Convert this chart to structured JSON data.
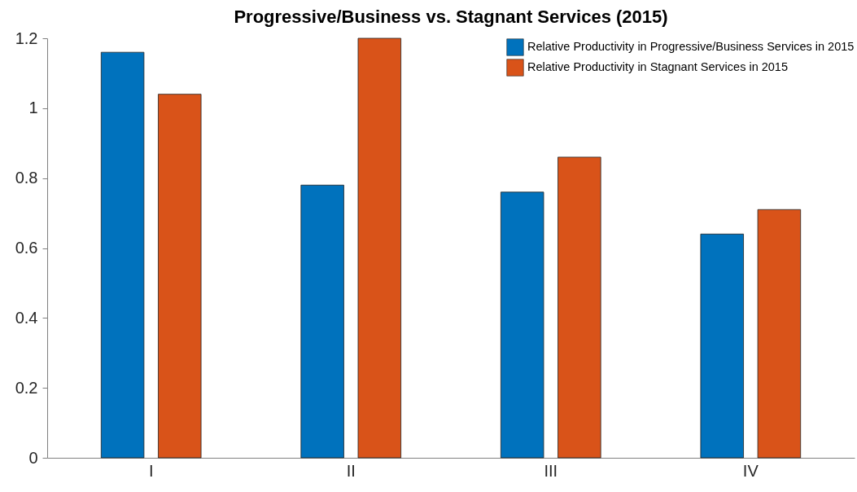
{
  "chart_data": {
    "type": "bar",
    "title": "Progressive/Business vs. Stagnant Services (2015)",
    "categories": [
      "I",
      "II",
      "III",
      "IV"
    ],
    "series": [
      {
        "name": "Relative Productivity in Progressive/Business Services in 2015",
        "color": "#0072bd",
        "values": [
          1.16,
          0.78,
          0.76,
          0.64
        ]
      },
      {
        "name": "Relative Productivity in Stagnant Services in 2015",
        "color": "#d95319",
        "values": [
          1.04,
          1.2,
          0.86,
          0.71
        ]
      }
    ],
    "ylim": [
      0,
      1.2
    ],
    "yticks": [
      0,
      0.2,
      0.4,
      0.6,
      0.8,
      1,
      1.2
    ],
    "grid": false,
    "legend": "top right"
  }
}
